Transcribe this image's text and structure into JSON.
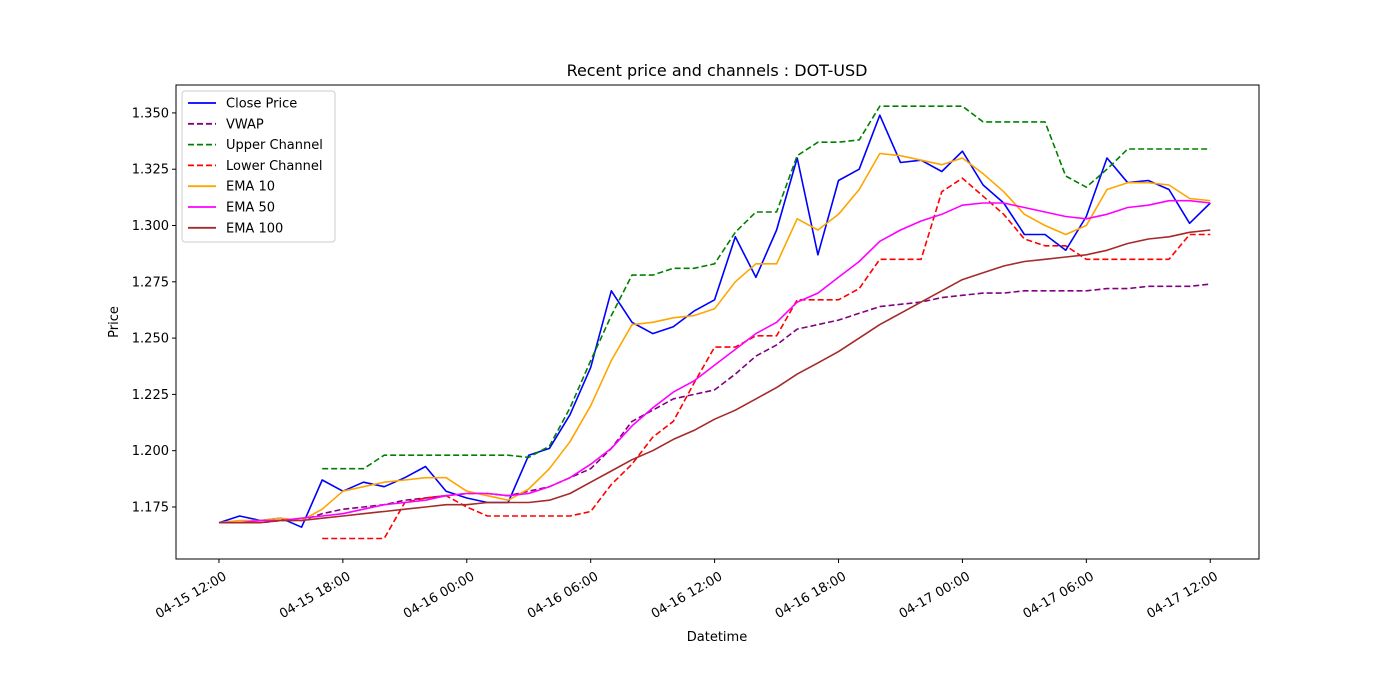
{
  "chart_data": {
    "type": "line",
    "title": "Recent price and channels : DOT-USD",
    "xlabel": "Datetime",
    "ylabel": "Price",
    "x_hours_from_start": [
      0,
      1,
      2,
      3,
      4,
      5,
      6,
      7,
      8,
      9,
      10,
      11,
      12,
      13,
      14,
      15,
      16,
      17,
      18,
      19,
      20,
      21,
      22,
      23,
      24,
      25,
      26,
      27,
      28,
      29,
      30,
      31,
      32,
      33,
      34,
      35,
      36,
      37,
      38,
      39,
      40,
      41,
      42,
      43,
      44,
      45,
      46,
      47,
      48
    ],
    "xlim_hours": [
      -2.08,
      50.36
    ],
    "ylim": [
      1.1519,
      1.3624
    ],
    "xticks": [
      {
        "hour": 0,
        "label": "04-15 12:00"
      },
      {
        "hour": 6,
        "label": "04-15 18:00"
      },
      {
        "hour": 12,
        "label": "04-16 00:00"
      },
      {
        "hour": 18,
        "label": "04-16 06:00"
      },
      {
        "hour": 24,
        "label": "04-16 12:00"
      },
      {
        "hour": 30,
        "label": "04-16 18:00"
      },
      {
        "hour": 36,
        "label": "04-17 00:00"
      },
      {
        "hour": 42,
        "label": "04-17 06:00"
      },
      {
        "hour": 48,
        "label": "04-17 12:00"
      }
    ],
    "yticks": [
      {
        "value": 1.175,
        "label": "1.175"
      },
      {
        "value": 1.2,
        "label": "1.200"
      },
      {
        "value": 1.225,
        "label": "1.225"
      },
      {
        "value": 1.25,
        "label": "1.250"
      },
      {
        "value": 1.275,
        "label": "1.275"
      },
      {
        "value": 1.3,
        "label": "1.300"
      },
      {
        "value": 1.325,
        "label": "1.325"
      },
      {
        "value": 1.35,
        "label": "1.350"
      }
    ],
    "grid": false,
    "legend_position": "top-left",
    "series": [
      {
        "name": "Close Price",
        "color": "#0000ff",
        "dash": false,
        "values": [
          1.168,
          1.171,
          1.169,
          1.17,
          1.166,
          1.187,
          1.182,
          1.186,
          1.184,
          1.188,
          1.193,
          1.182,
          1.179,
          1.177,
          1.177,
          1.198,
          1.201,
          1.216,
          1.237,
          1.271,
          1.257,
          1.252,
          1.255,
          1.262,
          1.267,
          1.295,
          1.277,
          1.298,
          1.33,
          1.287,
          1.32,
          1.325,
          1.349,
          1.328,
          1.329,
          1.324,
          1.333,
          1.318,
          1.31,
          1.296,
          1.296,
          1.289,
          1.304,
          1.33,
          1.319,
          1.32,
          1.316,
          1.301,
          1.31
        ]
      },
      {
        "name": "VWAP",
        "color": "#800080",
        "dash": true,
        "values": [
          1.168,
          1.168,
          1.168,
          1.169,
          1.169,
          1.172,
          1.174,
          1.175,
          1.176,
          1.178,
          1.179,
          1.18,
          1.181,
          1.181,
          1.18,
          1.182,
          1.184,
          1.188,
          1.192,
          1.201,
          1.213,
          1.218,
          1.223,
          1.225,
          1.227,
          1.234,
          1.242,
          1.247,
          1.254,
          1.256,
          1.258,
          1.261,
          1.264,
          1.265,
          1.266,
          1.268,
          1.269,
          1.27,
          1.27,
          1.271,
          1.271,
          1.271,
          1.271,
          1.272,
          1.272,
          1.273,
          1.273,
          1.273,
          1.274
        ]
      },
      {
        "name": "Upper Channel",
        "color": "#008000",
        "dash": true,
        "values": [
          null,
          null,
          null,
          null,
          null,
          1.192,
          1.192,
          1.192,
          1.198,
          1.198,
          1.198,
          1.198,
          1.198,
          1.198,
          1.198,
          1.197,
          1.202,
          1.219,
          1.24,
          1.26,
          1.278,
          1.278,
          1.281,
          1.281,
          1.283,
          1.297,
          1.306,
          1.306,
          1.331,
          1.337,
          1.337,
          1.338,
          1.353,
          1.353,
          1.353,
          1.353,
          1.353,
          1.346,
          1.346,
          1.346,
          1.346,
          1.322,
          1.317,
          1.325,
          1.334,
          1.334,
          1.334,
          1.334,
          1.334
        ]
      },
      {
        "name": "Lower Channel",
        "color": "#ff0000",
        "dash": true,
        "values": [
          null,
          null,
          null,
          null,
          null,
          1.161,
          1.161,
          1.161,
          1.161,
          1.177,
          1.179,
          1.18,
          1.175,
          1.171,
          1.171,
          1.171,
          1.171,
          1.171,
          1.173,
          1.185,
          1.194,
          1.206,
          1.213,
          1.23,
          1.246,
          1.246,
          1.251,
          1.251,
          1.267,
          1.267,
          1.267,
          1.272,
          1.285,
          1.285,
          1.285,
          1.315,
          1.321,
          1.313,
          1.305,
          1.294,
          1.291,
          1.291,
          1.285,
          1.285,
          1.285,
          1.285,
          1.285,
          1.296,
          1.296
        ]
      },
      {
        "name": "EMA 10",
        "color": "#ffa500",
        "dash": false,
        "values": [
          1.168,
          1.169,
          1.169,
          1.17,
          1.169,
          1.174,
          1.182,
          1.184,
          1.186,
          1.187,
          1.188,
          1.188,
          1.182,
          1.18,
          1.178,
          1.183,
          1.192,
          1.204,
          1.22,
          1.24,
          1.256,
          1.257,
          1.259,
          1.26,
          1.263,
          1.275,
          1.283,
          1.283,
          1.303,
          1.298,
          1.305,
          1.316,
          1.332,
          1.331,
          1.329,
          1.327,
          1.33,
          1.323,
          1.315,
          1.305,
          1.3,
          1.296,
          1.3,
          1.316,
          1.319,
          1.319,
          1.318,
          1.312,
          1.311
        ]
      },
      {
        "name": "EMA 50",
        "color": "#ff00ff",
        "dash": false,
        "values": [
          1.168,
          1.168,
          1.169,
          1.169,
          1.17,
          1.171,
          1.172,
          1.174,
          1.176,
          1.177,
          1.178,
          1.18,
          1.181,
          1.181,
          1.18,
          1.181,
          1.184,
          1.188,
          1.194,
          1.201,
          1.211,
          1.219,
          1.226,
          1.231,
          1.238,
          1.245,
          1.252,
          1.257,
          1.266,
          1.27,
          1.277,
          1.284,
          1.293,
          1.298,
          1.302,
          1.305,
          1.309,
          1.31,
          1.31,
          1.308,
          1.306,
          1.304,
          1.303,
          1.305,
          1.308,
          1.309,
          1.311,
          1.311,
          1.31
        ]
      },
      {
        "name": "EMA 100",
        "color": "#a52a2a",
        "dash": false,
        "values": [
          1.168,
          1.168,
          1.168,
          1.169,
          1.169,
          1.17,
          1.171,
          1.172,
          1.173,
          1.174,
          1.175,
          1.176,
          1.176,
          1.177,
          1.177,
          1.177,
          1.178,
          1.181,
          1.186,
          1.191,
          1.196,
          1.2,
          1.205,
          1.209,
          1.214,
          1.218,
          1.223,
          1.228,
          1.234,
          1.239,
          1.244,
          1.25,
          1.256,
          1.261,
          1.266,
          1.271,
          1.276,
          1.279,
          1.282,
          1.284,
          1.285,
          1.286,
          1.287,
          1.289,
          1.292,
          1.294,
          1.295,
          1.297,
          1.298
        ]
      }
    ]
  }
}
